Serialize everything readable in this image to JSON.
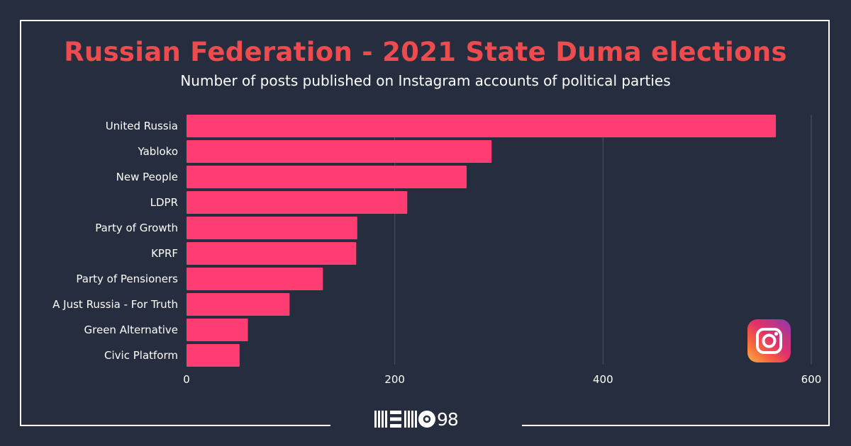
{
  "header": {
    "title": "Russian Federation - 2021 State Duma elections",
    "subtitle": "Number of posts published on Instagram accounts of political parties"
  },
  "brand": {
    "logo_text": "98",
    "logo_icon": "memo98-logo-icon",
    "social_icon": "instagram-icon"
  },
  "colors": {
    "background": "#262d3e",
    "bar": "#ff3d72",
    "title": "#ee4b4e",
    "text": "#ffffff",
    "grid": "#4c5364"
  },
  "chart_data": {
    "type": "bar",
    "orientation": "horizontal",
    "categories": [
      "United Russia",
      "Yabloko",
      "New People",
      "LDPR",
      "Party of Growth",
      "KPRF",
      "Party of Pensioners",
      "A Just Russia - For Truth",
      "Green Alternative",
      "Civic Platform"
    ],
    "values": [
      566,
      293,
      269,
      212,
      164,
      163,
      131,
      99,
      59,
      51
    ],
    "xlim": [
      0,
      600
    ],
    "xticks": [
      0,
      200,
      400,
      600
    ],
    "grid": "vertical",
    "legend": "none"
  }
}
